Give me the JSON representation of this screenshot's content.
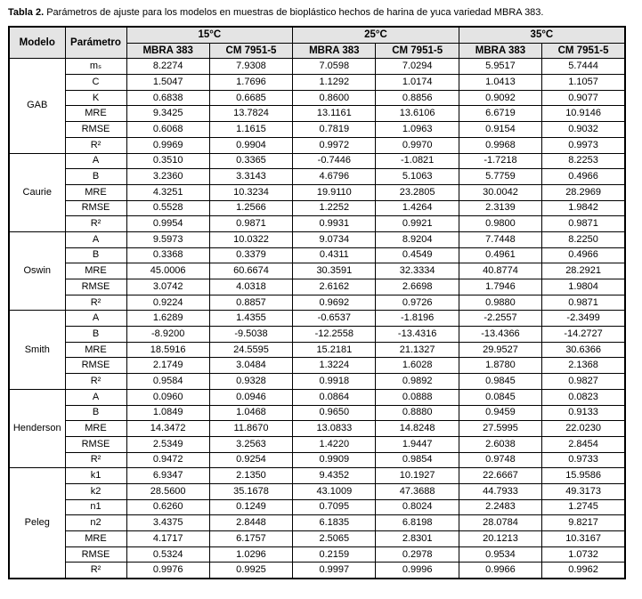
{
  "caption": {
    "label": "Tabla 2.",
    "text": " Parámetros de ajuste para los modelos en muestras de bioplástico hechos de harina de yuca variedad MBRA 383."
  },
  "table": {
    "headers": {
      "modelo": "Modelo",
      "parametro": "Parámetro",
      "temps": [
        "15°C",
        "25°C",
        "35°C"
      ],
      "subcols": [
        "MBRA 383",
        "CM 7951-5",
        "MBRA 383",
        "CM 7951-5",
        "MBRA 383",
        "CM 7951-5"
      ]
    },
    "models": [
      {
        "name": "GAB",
        "rows": [
          {
            "param": "mₛ",
            "values": [
              "8.2274",
              "7.9308",
              "7.0598",
              "7.0294",
              "5.9517",
              "5.7444"
            ]
          },
          {
            "param": "C",
            "values": [
              "1.5047",
              "1.7696",
              "1.1292",
              "1.0174",
              "1.0413",
              "1.1057"
            ]
          },
          {
            "param": "K",
            "values": [
              "0.6838",
              "0.6685",
              "0.8600",
              "0.8856",
              "0.9092",
              "0.9077"
            ]
          },
          {
            "param": "MRE",
            "values": [
              "9.3425",
              "13.7824",
              "13.1161",
              "13.6106",
              "6.6719",
              "10.9146"
            ]
          },
          {
            "param": "RMSE",
            "values": [
              "0.6068",
              "1.1615",
              "0.7819",
              "1.0963",
              "0.9154",
              "0.9032"
            ]
          },
          {
            "param": "R²",
            "values": [
              "0.9969",
              "0.9904",
              "0.9972",
              "0.9970",
              "0.9968",
              "0.9973"
            ]
          }
        ]
      },
      {
        "name": "Caurie",
        "rows": [
          {
            "param": "A",
            "values": [
              "0.3510",
              "0.3365",
              "-0.7446",
              "-1.0821",
              "-1.7218",
              "8.2253"
            ]
          },
          {
            "param": "B",
            "values": [
              "3.2360",
              "3.3143",
              "4.6796",
              "5.1063",
              "5.7759",
              "0.4966"
            ]
          },
          {
            "param": "MRE",
            "values": [
              "4.3251",
              "10.3234",
              "19.9110",
              "23.2805",
              "30.0042",
              "28.2969"
            ]
          },
          {
            "param": "RMSE",
            "values": [
              "0.5528",
              "1.2566",
              "1.2252",
              "1.4264",
              "2.3139",
              "1.9842"
            ]
          },
          {
            "param": "R²",
            "values": [
              "0.9954",
              "0.9871",
              "0.9931",
              "0.9921",
              "0.9800",
              "0.9871"
            ]
          }
        ]
      },
      {
        "name": "Oswin",
        "rows": [
          {
            "param": "A",
            "values": [
              "9.5973",
              "10.0322",
              "9.0734",
              "8.9204",
              "7.7448",
              "8.2250"
            ]
          },
          {
            "param": "B",
            "values": [
              "0.3368",
              "0.3379",
              "0.4311",
              "0.4549",
              "0.4961",
              "0.4966"
            ]
          },
          {
            "param": "MRE",
            "values": [
              "45.0006",
              "60.6674",
              "30.3591",
              "32.3334",
              "40.8774",
              "28.2921"
            ]
          },
          {
            "param": "RMSE",
            "values": [
              "3.0742",
              "4.0318",
              "2.6162",
              "2.6698",
              "1.7946",
              "1.9804"
            ]
          },
          {
            "param": "R²",
            "values": [
              "0.9224",
              "0.8857",
              "0.9692",
              "0.9726",
              "0.9880",
              "0.9871"
            ]
          }
        ]
      },
      {
        "name": "Smith",
        "rows": [
          {
            "param": "A",
            "values": [
              "1.6289",
              "1.4355",
              "-0.6537",
              "-1.8196",
              "-2.2557",
              "-2.3499"
            ]
          },
          {
            "param": "B",
            "values": [
              "-8.9200",
              "-9.5038",
              "-12.2558",
              "-13.4316",
              "-13.4366",
              "-14.2727"
            ]
          },
          {
            "param": "MRE",
            "values": [
              "18.5916",
              "24.5595",
              "15.2181",
              "21.1327",
              "29.9527",
              "30.6366"
            ]
          },
          {
            "param": "RMSE",
            "values": [
              "2.1749",
              "3.0484",
              "1.3224",
              "1.6028",
              "1.8780",
              "2.1368"
            ]
          },
          {
            "param": "R²",
            "values": [
              "0.9584",
              "0.9328",
              "0.9918",
              "0.9892",
              "0.9845",
              "0.9827"
            ]
          }
        ]
      },
      {
        "name": "Henderson",
        "rows": [
          {
            "param": "A",
            "values": [
              "0.0960",
              "0.0946",
              "0.0864",
              "0.0888",
              "0.0845",
              "0.0823"
            ]
          },
          {
            "param": "B",
            "values": [
              "1.0849",
              "1.0468",
              "0.9650",
              "0.8880",
              "0.9459",
              "0.9133"
            ]
          },
          {
            "param": "MRE",
            "values": [
              "14.3472",
              "11.8670",
              "13.0833",
              "14.8248",
              "27.5995",
              "22.0230"
            ]
          },
          {
            "param": "RMSE",
            "values": [
              "2.5349",
              "3.2563",
              "1.4220",
              "1.9447",
              "2.6038",
              "2.8454"
            ]
          },
          {
            "param": "R²",
            "values": [
              "0.9472",
              "0.9254",
              "0.9909",
              "0.9854",
              "0.9748",
              "0.9733"
            ]
          }
        ]
      },
      {
        "name": "Peleg",
        "rows": [
          {
            "param": "k1",
            "values": [
              "6.9347",
              "2.1350",
              "9.4352",
              "10.1927",
              "22.6667",
              "15.9586"
            ]
          },
          {
            "param": "k2",
            "values": [
              "28.5600",
              "35.1678",
              "43.1009",
              "47.3688",
              "44.7933",
              "49.3173"
            ]
          },
          {
            "param": "n1",
            "values": [
              "0.6260",
              "0.1249",
              "0.7095",
              "0.8024",
              "2.2483",
              "1.2745"
            ]
          },
          {
            "param": "n2",
            "values": [
              "3.4375",
              "2.8448",
              "6.1835",
              "6.8198",
              "28.0784",
              "9.8217"
            ]
          },
          {
            "param": "MRE",
            "values": [
              "4.1717",
              "6.1757",
              "2.5065",
              "2.8301",
              "20.1213",
              "10.3167"
            ]
          },
          {
            "param": "RMSE",
            "values": [
              "0.5324",
              "1.0296",
              "0.2159",
              "0.2978",
              "0.9534",
              "1.0732"
            ]
          },
          {
            "param": "R²",
            "values": [
              "0.9976",
              "0.9925",
              "0.9997",
              "0.9996",
              "0.9966",
              "0.9962"
            ]
          }
        ]
      }
    ]
  }
}
